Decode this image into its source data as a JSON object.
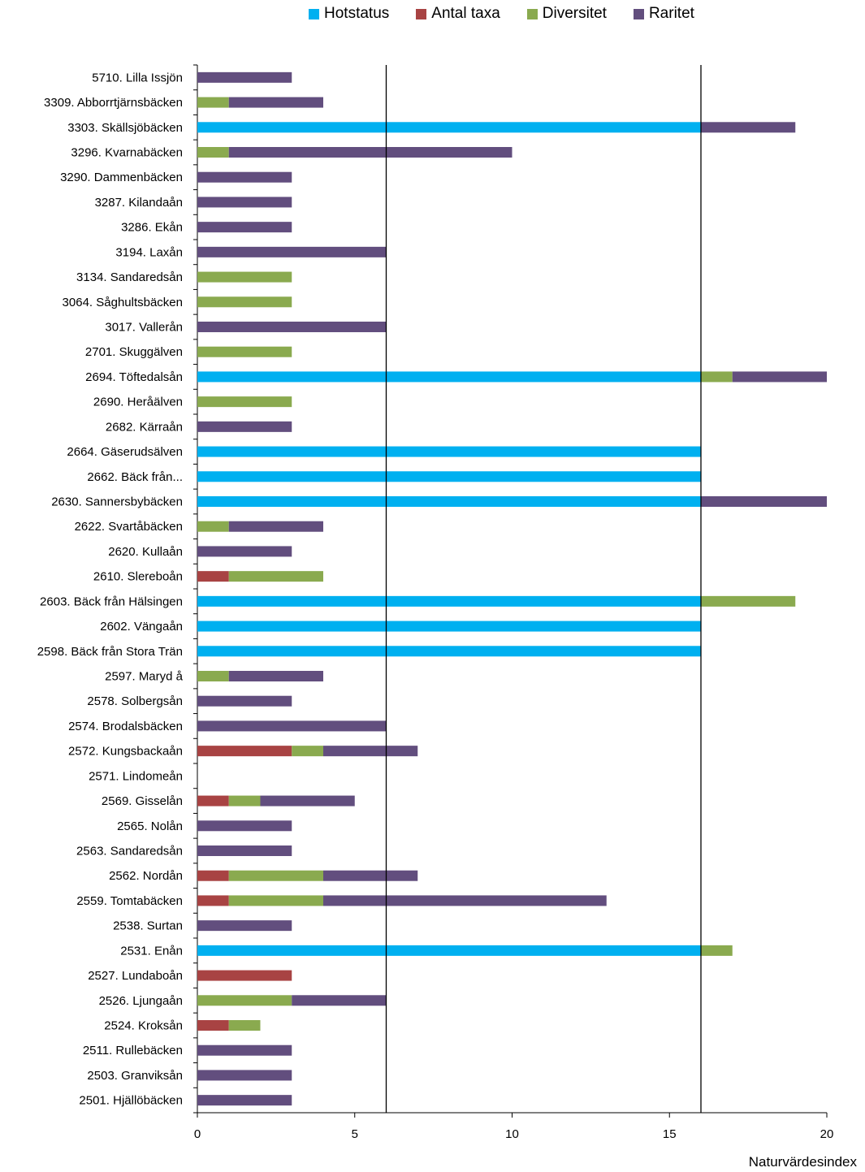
{
  "chart_data": {
    "type": "bar",
    "orientation": "horizontal",
    "stacked": true,
    "xlabel": "Naturvärdesindex",
    "xlim": [
      0,
      20
    ],
    "xticks": [
      0,
      5,
      10,
      15,
      20
    ],
    "reference_lines": [
      6,
      16
    ],
    "legend_position": "top",
    "colors": {
      "Hotstatus": "#00B0F0",
      "Antal taxa": "#A84343",
      "Diversitet": "#8AAA4F",
      "Raritet": "#624E7E"
    },
    "categories": [
      "5710. Lilla Issjön",
      "3309. Abborrtjärnsbäcken",
      "3303. Skällsjöbäcken",
      "3296. Kvarnabäcken",
      "3290. Dammenbäcken",
      "3287. Kilandaån",
      "3286. Ekån",
      "3194. Laxån",
      "3134. Sandaredsån",
      "3064. Såghultsbäcken",
      "3017. Vallerån",
      "2701. Skuggälven",
      "2694. Töftedalsån",
      "2690. Heråälven",
      "2682. Kärraån",
      "2664. Gäserudsälven",
      "2662. Bäck från...",
      "2630. Sannersbybäcken",
      "2622. Svartåbäcken",
      "2620. Kullaån",
      "2610. Slereboån",
      "2603. Bäck från Hälsingen",
      "2602. Vängaån",
      "2598. Bäck från Stora Trän",
      "2597. Maryd å",
      "2578. Solbergsån",
      "2574. Brodalsbäcken",
      "2572. Kungsbackaån",
      "2571. Lindomeån",
      "2569. Gisselån",
      "2565. Nolån",
      "2563. Sandaredsån",
      "2562. Nordån",
      "2559. Tomtabäcken",
      "2538. Surtan",
      "2531. Enån",
      "2527. Lundaboån",
      "2526. Ljungaån",
      "2524. Kroksån",
      "2511. Rullebäcken",
      "2503. Granviksån",
      "2501. Hjällöbäcken"
    ],
    "series": [
      {
        "name": "Hotstatus",
        "values": [
          0,
          0,
          16,
          0,
          0,
          0,
          0,
          0,
          0,
          0,
          0,
          0,
          16,
          0,
          0,
          16,
          16,
          16,
          0,
          0,
          0,
          16,
          16,
          16,
          0,
          0,
          0,
          0,
          0,
          0,
          0,
          0,
          0,
          0,
          0,
          16,
          0,
          0,
          0,
          0,
          0,
          0
        ]
      },
      {
        "name": "Antal taxa",
        "values": [
          0,
          0,
          0,
          0,
          0,
          0,
          0,
          0,
          0,
          0,
          0,
          0,
          0,
          0,
          0,
          0,
          0,
          0,
          0,
          0,
          1,
          0,
          0,
          0,
          0,
          0,
          0,
          3,
          0,
          1,
          0,
          0,
          1,
          1,
          0,
          0,
          3,
          0,
          1,
          0,
          0,
          0
        ]
      },
      {
        "name": "Diversitet",
        "values": [
          0,
          1,
          0,
          1,
          0,
          0,
          0,
          0,
          3,
          3,
          0,
          3,
          1,
          3,
          0,
          0,
          0,
          0,
          1,
          0,
          3,
          3,
          0,
          0,
          1,
          0,
          0,
          1,
          0,
          1,
          0,
          0,
          3,
          3,
          0,
          1,
          0,
          3,
          1,
          0,
          0,
          0
        ]
      },
      {
        "name": "Raritet",
        "values": [
          3,
          3,
          3,
          9,
          3,
          3,
          3,
          6,
          0,
          0,
          6,
          0,
          3,
          0,
          3,
          0,
          0,
          4,
          3,
          3,
          0,
          0,
          0,
          0,
          3,
          3,
          6,
          3,
          0,
          3,
          3,
          3,
          3,
          9,
          3,
          0,
          0,
          3,
          0,
          3,
          3,
          3
        ]
      }
    ]
  }
}
